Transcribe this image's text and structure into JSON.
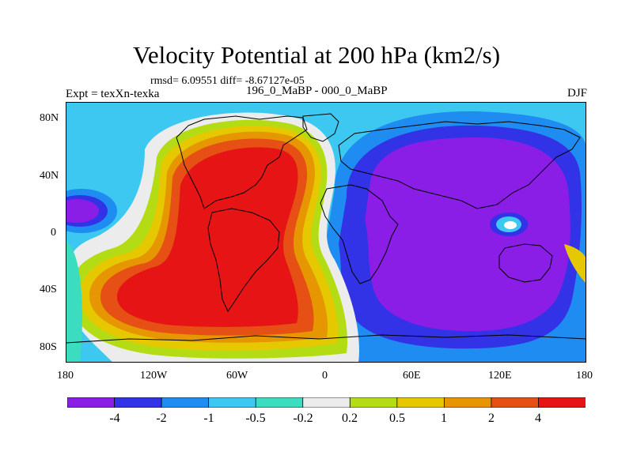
{
  "title": "Velocity Potential at 200 hPa (km2/s)",
  "stats": "rmsd= 6.09551 diff= -8.67127e-05",
  "left_label": "Expt = texXn-texka",
  "center_label": "196_0_MaBP - 000_0_MaBP",
  "right_label": "DJF",
  "map": {
    "lat_ticks": [
      "80N",
      "40N",
      "0",
      "40S",
      "80S"
    ],
    "lon_ticks": [
      "180",
      "120W",
      "60W",
      "0",
      "60E",
      "120E",
      "180"
    ]
  },
  "colorbar": {
    "labels": [
      "-4",
      "-2",
      "-1",
      "-0.5",
      "-0.2",
      "0.2",
      "0.5",
      "1",
      "2",
      "4"
    ],
    "colors": [
      "#8a1ee6",
      "#3232e6",
      "#1e8cf0",
      "#3cc8f0",
      "#3cdcc0",
      "#ececec",
      "#b4dc14",
      "#e6c800",
      "#e69600",
      "#e65014",
      "#e61414"
    ]
  }
}
